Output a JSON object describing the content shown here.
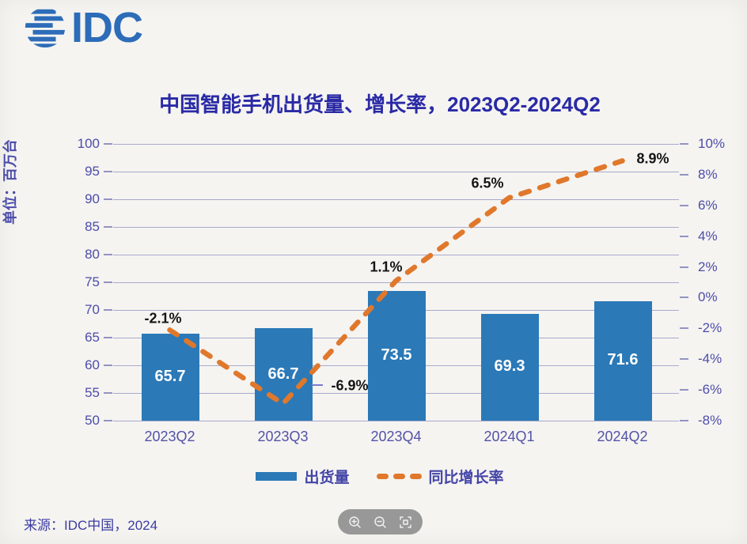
{
  "logo": {
    "text": "IDC",
    "color": "#2d6cb8"
  },
  "chart_data": {
    "type": "bar",
    "title": "中国智能手机出货量、增长率，2023Q2-2024Q2",
    "categories": [
      "2023Q2",
      "2023Q3",
      "2023Q4",
      "2024Q1",
      "2024Q2"
    ],
    "series": [
      {
        "name": "出货量",
        "type": "bar",
        "values": [
          65.7,
          66.7,
          73.5,
          69.3,
          71.6
        ],
        "value_labels": [
          "65.7",
          "66.7",
          "73.5",
          "69.3",
          "71.6"
        ],
        "color": "#2b79b7",
        "axis": "left"
      },
      {
        "name": "同比增长率",
        "type": "line",
        "dashed": true,
        "values": [
          -2.1,
          -6.9,
          1.1,
          6.5,
          8.9
        ],
        "point_labels": [
          "-2.1%",
          "-6.9%",
          "1.1%",
          "6.5%",
          "8.9%"
        ],
        "color": "#e0782c",
        "axis": "right"
      }
    ],
    "left_axis": {
      "label": "单位：百万台",
      "min": 50,
      "max": 100,
      "step": 5,
      "ticks": [
        "100",
        "95",
        "90",
        "85",
        "80",
        "75",
        "70",
        "65",
        "60",
        "55",
        "50"
      ]
    },
    "right_axis": {
      "min": -8,
      "max": 10,
      "step": 2,
      "ticks": [
        "10%",
        "8%",
        "6%",
        "4%",
        "2%",
        "0%",
        "-2%",
        "-4%",
        "-6%",
        "-8%"
      ]
    },
    "legend": {
      "position": "bottom",
      "items": [
        "出货量",
        "同比增长率"
      ]
    },
    "grid": true
  },
  "source": {
    "text": "来源：IDC中国，2024"
  },
  "toolbar": {
    "icons": [
      "zoom-in",
      "zoom-out",
      "fit-to-screen"
    ]
  },
  "colors": {
    "background": "#f5f4f1",
    "title": "#2a2aa6",
    "axis_text": "#4d4daa",
    "gridline": "#a9a9cd",
    "bar": "#2b79b7",
    "line": "#e0782c",
    "growth_label": "#141414",
    "source_text": "#3c3ca4"
  }
}
